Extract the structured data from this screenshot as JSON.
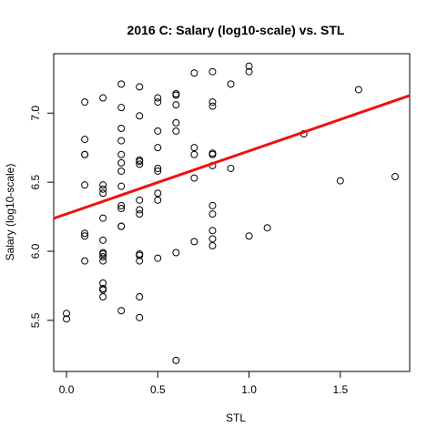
{
  "chart_data": {
    "type": "scatter",
    "title": "2016 C: Salary (log10-scale) vs. STL",
    "xlabel": "STL",
    "ylabel": "Salary (log10-scale)",
    "xlim": [
      -0.07,
      1.88
    ],
    "ylim": [
      5.13,
      7.43
    ],
    "x_ticks": [
      0.0,
      0.5,
      1.0,
      1.5
    ],
    "x_tick_labels": [
      "0.0",
      "0.5",
      "1.0",
      "1.5"
    ],
    "y_ticks": [
      5.5,
      6.0,
      6.5,
      7.0
    ],
    "y_tick_labels": [
      "5.5",
      "6.0",
      "6.5",
      "7.0"
    ],
    "grid": false,
    "fit_line": {
      "color": "#ee1111",
      "intercept": 6.27,
      "slope": 0.456
    },
    "points": [
      {
        "x": 0.0,
        "y": 5.55
      },
      {
        "x": 0.0,
        "y": 5.51
      },
      {
        "x": 0.1,
        "y": 7.08
      },
      {
        "x": 0.1,
        "y": 6.81
      },
      {
        "x": 0.1,
        "y": 6.7
      },
      {
        "x": 0.1,
        "y": 6.7
      },
      {
        "x": 0.1,
        "y": 6.48
      },
      {
        "x": 0.1,
        "y": 6.13
      },
      {
        "x": 0.1,
        "y": 6.11
      },
      {
        "x": 0.1,
        "y": 5.93
      },
      {
        "x": 0.2,
        "y": 7.11
      },
      {
        "x": 0.2,
        "y": 6.48
      },
      {
        "x": 0.2,
        "y": 6.45
      },
      {
        "x": 0.2,
        "y": 6.42
      },
      {
        "x": 0.2,
        "y": 6.24
      },
      {
        "x": 0.2,
        "y": 6.08
      },
      {
        "x": 0.2,
        "y": 5.99
      },
      {
        "x": 0.2,
        "y": 5.98
      },
      {
        "x": 0.2,
        "y": 5.96
      },
      {
        "x": 0.2,
        "y": 5.93
      },
      {
        "x": 0.2,
        "y": 5.77
      },
      {
        "x": 0.2,
        "y": 5.73
      },
      {
        "x": 0.2,
        "y": 5.72
      },
      {
        "x": 0.2,
        "y": 5.67
      },
      {
        "x": 0.3,
        "y": 7.21
      },
      {
        "x": 0.3,
        "y": 7.04
      },
      {
        "x": 0.3,
        "y": 6.89
      },
      {
        "x": 0.3,
        "y": 6.8
      },
      {
        "x": 0.3,
        "y": 6.7
      },
      {
        "x": 0.3,
        "y": 6.64
      },
      {
        "x": 0.3,
        "y": 6.58
      },
      {
        "x": 0.3,
        "y": 6.47
      },
      {
        "x": 0.3,
        "y": 6.33
      },
      {
        "x": 0.3,
        "y": 6.31
      },
      {
        "x": 0.3,
        "y": 6.18
      },
      {
        "x": 0.3,
        "y": 6.18
      },
      {
        "x": 0.3,
        "y": 5.57
      },
      {
        "x": 0.4,
        "y": 7.19
      },
      {
        "x": 0.4,
        "y": 6.98
      },
      {
        "x": 0.4,
        "y": 6.66
      },
      {
        "x": 0.4,
        "y": 6.65
      },
      {
        "x": 0.4,
        "y": 6.63
      },
      {
        "x": 0.4,
        "y": 6.37
      },
      {
        "x": 0.4,
        "y": 6.3
      },
      {
        "x": 0.4,
        "y": 6.27
      },
      {
        "x": 0.4,
        "y": 5.98
      },
      {
        "x": 0.4,
        "y": 5.97
      },
      {
        "x": 0.4,
        "y": 5.93
      },
      {
        "x": 0.4,
        "y": 5.67
      },
      {
        "x": 0.4,
        "y": 5.52
      },
      {
        "x": 0.5,
        "y": 7.11
      },
      {
        "x": 0.5,
        "y": 7.08
      },
      {
        "x": 0.5,
        "y": 6.87
      },
      {
        "x": 0.5,
        "y": 6.75
      },
      {
        "x": 0.5,
        "y": 6.6
      },
      {
        "x": 0.5,
        "y": 6.58
      },
      {
        "x": 0.5,
        "y": 6.42
      },
      {
        "x": 0.5,
        "y": 6.37
      },
      {
        "x": 0.5,
        "y": 5.95
      },
      {
        "x": 0.6,
        "y": 7.14
      },
      {
        "x": 0.6,
        "y": 7.13
      },
      {
        "x": 0.6,
        "y": 7.06
      },
      {
        "x": 0.6,
        "y": 6.93
      },
      {
        "x": 0.6,
        "y": 6.87
      },
      {
        "x": 0.6,
        "y": 5.99
      },
      {
        "x": 0.6,
        "y": 5.21
      },
      {
        "x": 0.7,
        "y": 7.29
      },
      {
        "x": 0.7,
        "y": 6.75
      },
      {
        "x": 0.7,
        "y": 6.7
      },
      {
        "x": 0.7,
        "y": 6.53
      },
      {
        "x": 0.7,
        "y": 6.07
      },
      {
        "x": 0.8,
        "y": 7.3
      },
      {
        "x": 0.8,
        "y": 7.08
      },
      {
        "x": 0.8,
        "y": 7.05
      },
      {
        "x": 0.8,
        "y": 6.71
      },
      {
        "x": 0.8,
        "y": 6.7
      },
      {
        "x": 0.8,
        "y": 6.62
      },
      {
        "x": 0.8,
        "y": 6.33
      },
      {
        "x": 0.8,
        "y": 6.27
      },
      {
        "x": 0.8,
        "y": 6.15
      },
      {
        "x": 0.8,
        "y": 6.09
      },
      {
        "x": 0.8,
        "y": 6.04
      },
      {
        "x": 0.9,
        "y": 7.21
      },
      {
        "x": 0.9,
        "y": 6.6
      },
      {
        "x": 1.0,
        "y": 7.34
      },
      {
        "x": 1.0,
        "y": 7.3
      },
      {
        "x": 1.0,
        "y": 6.11
      },
      {
        "x": 1.1,
        "y": 6.17
      },
      {
        "x": 1.3,
        "y": 6.85
      },
      {
        "x": 1.5,
        "y": 6.51
      },
      {
        "x": 1.6,
        "y": 7.17
      },
      {
        "x": 1.8,
        "y": 6.54
      }
    ]
  }
}
